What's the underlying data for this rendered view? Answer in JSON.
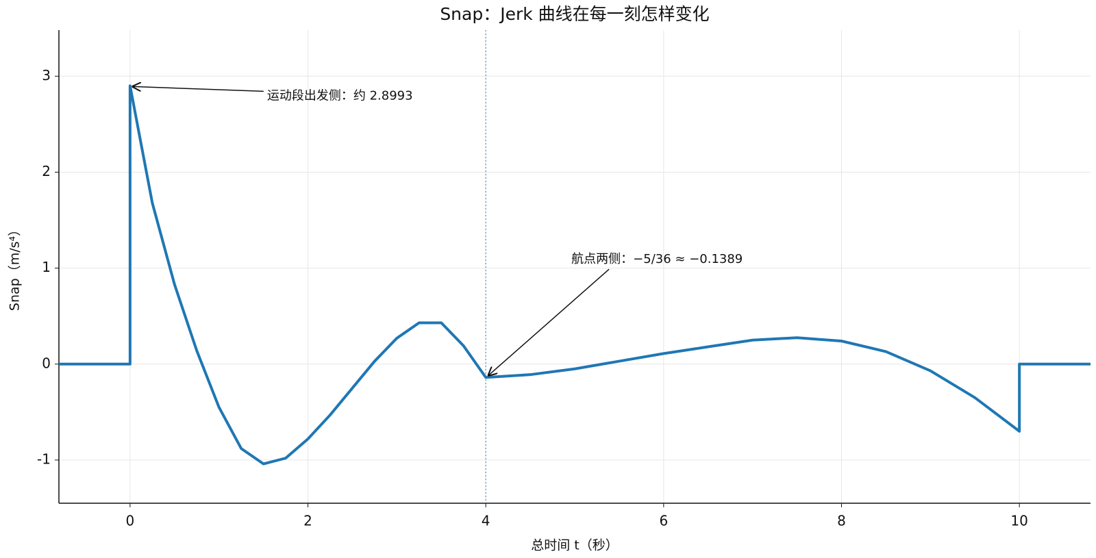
{
  "chart_data": {
    "type": "line",
    "title": "Snap：Jerk 曲线在每一刻怎样变化",
    "x_label": "总时间 t（秒）",
    "y_label": "Snap（m/s⁴）",
    "series": [
      {
        "name": "Snap",
        "color": "#1f77b4",
        "x": [
          -0.8,
          0,
          0,
          0.25,
          0.5,
          0.75,
          1.0,
          1.25,
          1.5,
          1.75,
          2.0,
          2.25,
          2.5,
          2.75,
          3.0,
          3.25,
          3.5,
          3.75,
          4.0,
          4.5,
          5.0,
          5.5,
          6.0,
          6.5,
          7.0,
          7.5,
          8.0,
          8.5,
          9.0,
          9.5,
          10.0,
          10.0,
          10.8
        ],
        "values": [
          0,
          0,
          2.8993,
          1.68,
          0.83,
          0.14,
          -0.45,
          -0.88,
          -1.04,
          -0.98,
          -0.78,
          -0.53,
          -0.25,
          0.03,
          0.27,
          0.43,
          0.43,
          0.19,
          -0.1389,
          -0.11,
          -0.05,
          0.03,
          0.11,
          0.18,
          0.25,
          0.275,
          0.24,
          0.13,
          -0.07,
          -0.35,
          -0.7,
          0,
          0
        ]
      }
    ],
    "vline": {
      "x": 4,
      "color": "#1f77b4"
    },
    "annotations": [
      {
        "text": "运动段出发侧：约 2.8993",
        "x": 0,
        "y": 2.8993
      },
      {
        "text": "航点两侧：−5/36 ≈ −0.1389",
        "x": 4,
        "y": -0.1389
      }
    ],
    "xlim": [
      -0.8,
      10.8
    ],
    "ylim": [
      -1.45,
      3.48
    ],
    "xticks": [
      0,
      2,
      4,
      6,
      8,
      10
    ],
    "yticks": [
      -1,
      0,
      1,
      2,
      3
    ],
    "grid": true
  }
}
